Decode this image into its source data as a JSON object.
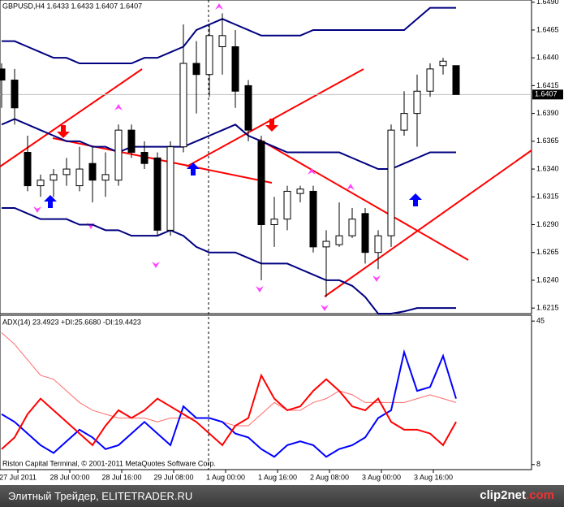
{
  "window": {
    "footer_text": "Элитный Трейдер, ELITETRADER.RU",
    "logo_text": "clip2net",
    "logo_suffix": ".com"
  },
  "chart_data": [
    {
      "type": "candlestick",
      "title": "GBPUSD,H4  1.6433 1.6433 1.6407 1.6407",
      "open": [
        1.643,
        1.642,
        1.6355,
        1.6325,
        1.633,
        1.6335,
        1.6325,
        1.6345,
        1.633,
        1.633,
        1.6375,
        1.6355,
        1.635,
        1.6285,
        1.636,
        1.6435,
        1.6425,
        1.645,
        1.645,
        1.6415,
        1.6365,
        1.629,
        1.6295,
        1.6318,
        1.632,
        1.627,
        1.6272,
        1.628,
        1.63,
        1.6265,
        1.628,
        1.6375,
        1.639,
        1.641,
        1.6433,
        1.6433
      ],
      "high": [
        1.6435,
        1.643,
        1.637,
        1.6335,
        1.634,
        1.635,
        1.636,
        1.636,
        1.6355,
        1.638,
        1.638,
        1.6365,
        1.6355,
        1.6365,
        1.647,
        1.6455,
        1.647,
        1.648,
        1.6465,
        1.642,
        1.637,
        1.6315,
        1.6325,
        1.6325,
        1.6325,
        1.6285,
        1.631,
        1.6305,
        1.6305,
        1.6285,
        1.638,
        1.641,
        1.6425,
        1.6435,
        1.644,
        1.6433
      ],
      "low": [
        1.6395,
        1.638,
        1.632,
        1.6315,
        1.6315,
        1.6325,
        1.632,
        1.631,
        1.6315,
        1.6325,
        1.635,
        1.634,
        1.628,
        1.628,
        1.6355,
        1.639,
        1.6405,
        1.6425,
        1.6395,
        1.6365,
        1.624,
        1.627,
        1.6285,
        1.631,
        1.6265,
        1.6225,
        1.627,
        1.6278,
        1.6255,
        1.625,
        1.627,
        1.637,
        1.636,
        1.6405,
        1.6425,
        1.6407
      ],
      "close": [
        1.642,
        1.6395,
        1.6325,
        1.633,
        1.6335,
        1.634,
        1.634,
        1.633,
        1.6335,
        1.6375,
        1.6355,
        1.6345,
        1.6285,
        1.636,
        1.6435,
        1.6425,
        1.646,
        1.646,
        1.641,
        1.6375,
        1.629,
        1.6295,
        1.632,
        1.6322,
        1.627,
        1.6275,
        1.628,
        1.6295,
        1.6265,
        1.628,
        1.6375,
        1.639,
        1.641,
        1.643,
        1.6437,
        1.6407
      ],
      "series": [
        {
          "color": "#000080",
          "values": [
            1.6455,
            1.6455,
            1.645,
            1.6445,
            1.644,
            1.644,
            1.6435,
            1.6435,
            1.6435,
            1.6435,
            1.6435,
            1.644,
            1.644,
            1.6445,
            1.645,
            1.6465,
            1.647,
            1.6475,
            1.647,
            1.6465,
            1.646,
            1.646,
            1.646,
            1.646,
            1.6465,
            1.6465,
            1.6465,
            1.6465,
            1.6465,
            1.6465,
            1.6465,
            1.6465,
            1.6475,
            1.6485,
            1.6485,
            1.6485
          ]
        },
        {
          "color": "#000080",
          "values": [
            1.638,
            1.6385,
            1.638,
            1.6375,
            1.637,
            1.6365,
            1.6365,
            1.636,
            1.636,
            1.6355,
            1.636,
            1.636,
            1.636,
            1.636,
            1.636,
            1.6365,
            1.637,
            1.6375,
            1.638,
            1.637,
            1.6365,
            1.636,
            1.6355,
            1.6355,
            1.6355,
            1.6355,
            1.6355,
            1.635,
            1.6345,
            1.634,
            1.634,
            1.6345,
            1.635,
            1.6355,
            1.6355,
            1.6355
          ]
        },
        {
          "color": "#000080",
          "values": [
            1.6305,
            1.6305,
            1.63,
            1.6295,
            1.6295,
            1.6295,
            1.629,
            1.629,
            1.6285,
            1.6285,
            1.628,
            1.628,
            1.628,
            1.6285,
            1.628,
            1.627,
            1.6265,
            1.6265,
            1.6265,
            1.626,
            1.6255,
            1.6255,
            1.6255,
            1.625,
            1.6245,
            1.624,
            1.624,
            1.6235,
            1.6225,
            1.621,
            1.621,
            1.6212,
            1.6215,
            1.6215,
            1.6215,
            1.6215
          ]
        }
      ],
      "current_price": 1.6407,
      "ylim": [
        1.621,
        1.6492
      ],
      "yticks": [
        {
          "value": 1.649,
          "label": "1.6490"
        },
        1.6465,
        {
          "value": 1.644,
          "label": "1.6440"
        },
        1.6415,
        {
          "value": 1.639,
          "label": "1.6390"
        },
        1.6365,
        {
          "value": 1.634,
          "label": "1.6340"
        },
        1.6315,
        {
          "value": 1.629,
          "label": "1.6290"
        },
        1.6265,
        {
          "value": 1.624,
          "label": "1.6240"
        },
        1.6215
      ]
    },
    {
      "type": "line",
      "title": "ADX(14) 23.4923 +DI:25.6680 -DI:19.4423",
      "series": [
        {
          "color": "#ff6a6a",
          "values": [
            42,
            39,
            35,
            31,
            30,
            27,
            24,
            22,
            21,
            20,
            20,
            20,
            19,
            20,
            20,
            20,
            20,
            19,
            18,
            18,
            21,
            24,
            22,
            22,
            24,
            25,
            27,
            26,
            24,
            24,
            24,
            24,
            25,
            26,
            25,
            24
          ]
        },
        {
          "color": "#0000ff",
          "values": [
            21,
            19,
            16,
            13,
            11,
            14,
            17,
            15,
            12,
            13,
            16,
            19,
            16,
            13,
            23,
            20,
            20,
            19,
            16,
            15,
            12,
            10,
            13,
            14,
            13,
            10,
            12,
            13,
            15,
            20,
            22,
            37,
            27,
            28,
            36,
            25
          ]
        },
        {
          "color": "#ff0000",
          "values": [
            12,
            15,
            21,
            25,
            22,
            19,
            16,
            13,
            18,
            22,
            20,
            22,
            25,
            23,
            21,
            19,
            16,
            13,
            18,
            20,
            31,
            25,
            22,
            23,
            27,
            30,
            27,
            23,
            22,
            25,
            19,
            17,
            17,
            16,
            13,
            19
          ]
        }
      ],
      "ylim": [
        6.7,
        46.5
      ],
      "yticks": [
        45,
        8
      ],
      "x_labels": [
        "27 Jul 2011",
        "28 Jul 00:00",
        "28 Jul 16:00",
        "29 Jul 08:00",
        "1 Aug 00:00",
        "1 Aug 16:00",
        "2 Aug 08:00",
        "3 Aug 00:00",
        "3 Aug 16:00"
      ],
      "footnote": "Riston Capital Terminal, © 2001-2011 MetaQuotes Software Corp."
    }
  ]
}
